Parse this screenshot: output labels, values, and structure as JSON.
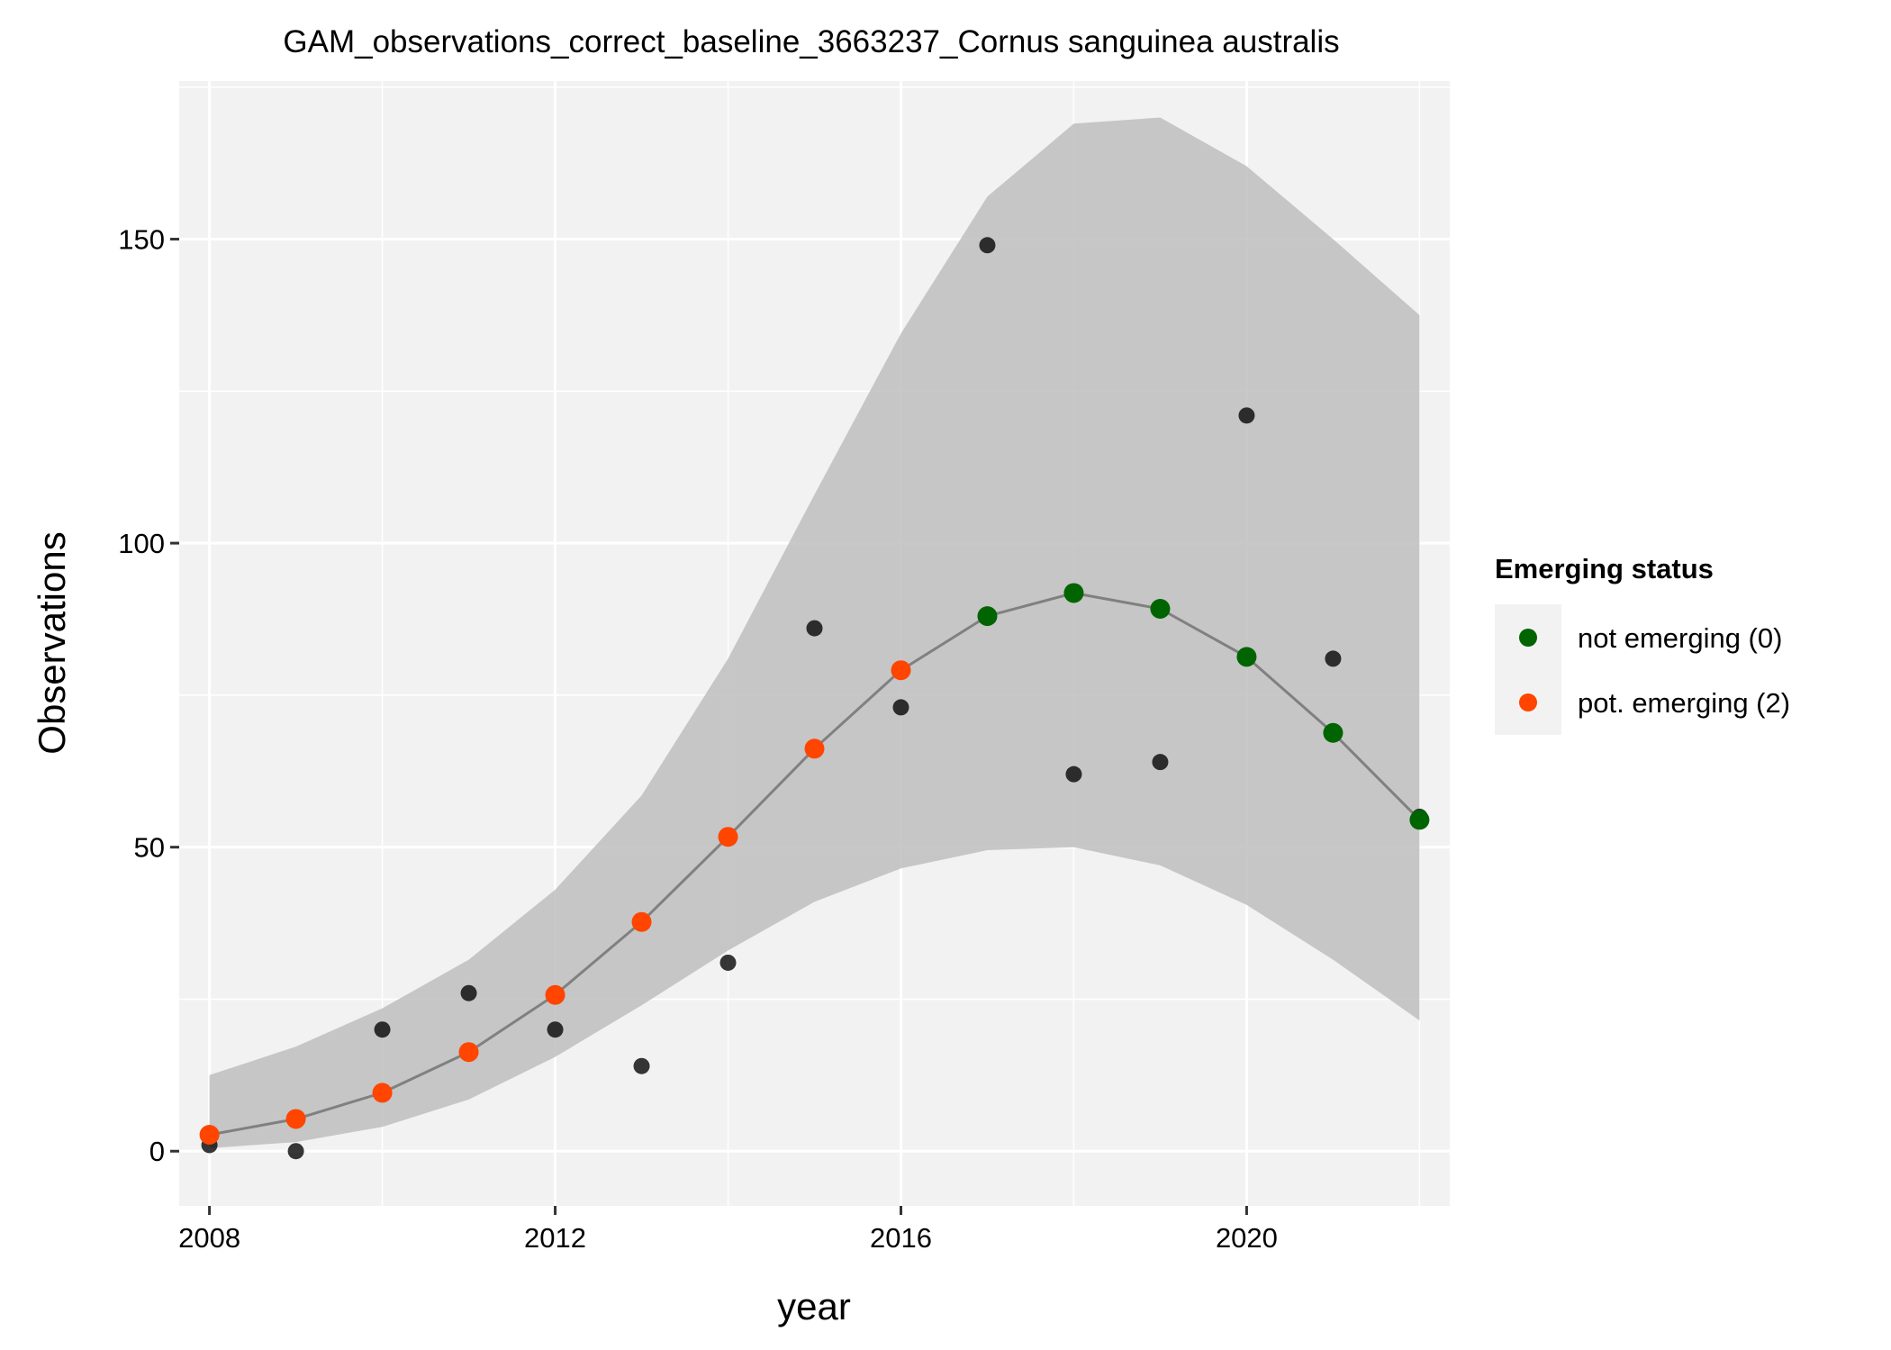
{
  "chart_data": {
    "type": "line",
    "title": "GAM_observations_correct_baseline_3663237_Cornus sanguinea australis",
    "xlabel": "year",
    "ylabel": "Observations",
    "xlim": [
      2007.65,
      2022.35
    ],
    "ylim": [
      -9,
      176
    ],
    "x_ticks": [
      2008,
      2012,
      2016,
      2020
    ],
    "y_ticks": [
      0,
      50,
      100,
      150
    ],
    "x_minor_ticks": [
      2010,
      2014,
      2018,
      2022
    ],
    "y_minor_ticks": [
      25,
      75,
      125,
      175
    ],
    "grid": true,
    "legend_position": "right",
    "legend": {
      "title": "Emerging status",
      "entries": [
        {
          "label": "not emerging (0)",
          "color": "#006400"
        },
        {
          "label": "pot. emerging (2)",
          "color": "#FF4500"
        }
      ]
    },
    "colors": {
      "panel": "#F2F2F2",
      "grid": "#FFFFFF",
      "ribbon": "#BEBEBE",
      "fit_line": "#808080",
      "observed_point": "#000000"
    },
    "observed": {
      "x": [
        2008,
        2009,
        2010,
        2011,
        2012,
        2013,
        2014,
        2015,
        2016,
        2017,
        2018,
        2019,
        2020,
        2021,
        2022
      ],
      "y": [
        1,
        0,
        20,
        26,
        20,
        14,
        31,
        86,
        73,
        149,
        62,
        64,
        121,
        81,
        55
      ]
    },
    "fitted": {
      "x": [
        2008,
        2009,
        2010,
        2011,
        2012,
        2013,
        2014,
        2015,
        2016,
        2017,
        2018,
        2019,
        2020,
        2021,
        2022
      ],
      "y": [
        2.7,
        5.3,
        9.6,
        16.3,
        25.7,
        37.7,
        51.7,
        66.2,
        79.1,
        88.0,
        91.8,
        89.2,
        81.3,
        68.8,
        54.5
      ],
      "lower": [
        0.5,
        1.5,
        4,
        8.5,
        15.5,
        24,
        33,
        41,
        46.5,
        49.5,
        50,
        47,
        40.5,
        31.5,
        21.5
      ],
      "upper": [
        12.5,
        17.2,
        23.5,
        31.5,
        43,
        58.5,
        81,
        108,
        134.5,
        157,
        169,
        170,
        162,
        150,
        137.5
      ],
      "status": [
        "pot. emerging (2)",
        "pot. emerging (2)",
        "pot. emerging (2)",
        "pot. emerging (2)",
        "pot. emerging (2)",
        "pot. emerging (2)",
        "pot. emerging (2)",
        "pot. emerging (2)",
        "pot. emerging (2)",
        "not emerging (0)",
        "not emerging (0)",
        "not emerging (0)",
        "not emerging (0)",
        "not emerging (0)",
        "not emerging (0)"
      ]
    }
  }
}
